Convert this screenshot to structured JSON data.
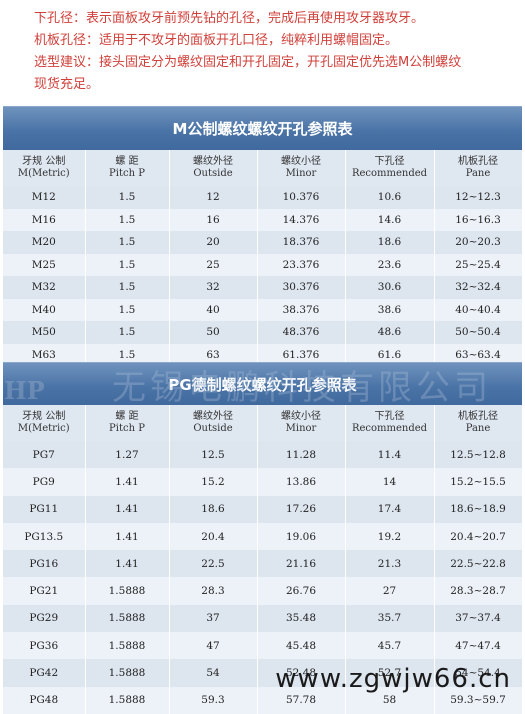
{
  "notes": [
    "下孔径：表示面板攻牙前预先钻的孔径，完成后再使用攻牙器攻牙。",
    "机板孔径：适用于不攻牙的面板开孔口径，纯粹利用螺帽固定。",
    "选型建议：接头固定分为螺纹固定和开孔固定，开孔固定优先选M公制螺纹",
    "现货充足。"
  ],
  "headers": [
    [
      "牙规 公制",
      "M(Metric)"
    ],
    [
      "螺 距",
      "Pitch P"
    ],
    [
      "螺纹外径",
      "Outside"
    ],
    [
      "螺纹小径",
      "Minor"
    ],
    [
      "下孔径",
      "Recommended"
    ],
    [
      "机板孔径",
      "Pane"
    ]
  ],
  "table_metric": {
    "title": "M公制螺纹螺纹开孔参照表",
    "rows": [
      [
        "M12",
        "1.5",
        "12",
        "10.376",
        "10.6",
        "12~12.3"
      ],
      [
        "M16",
        "1.5",
        "16",
        "14.376",
        "14.6",
        "16~16.3"
      ],
      [
        "M20",
        "1.5",
        "20",
        "18.376",
        "18.6",
        "20~20.3"
      ],
      [
        "M25",
        "1.5",
        "25",
        "23.376",
        "23.6",
        "25~25.4"
      ],
      [
        "M32",
        "1.5",
        "32",
        "30.376",
        "30.6",
        "32~32.4"
      ],
      [
        "M40",
        "1.5",
        "40",
        "38.376",
        "38.6",
        "40~40.4"
      ],
      [
        "M50",
        "1.5",
        "50",
        "48.376",
        "48.6",
        "50~50.4"
      ],
      [
        "M63",
        "1.5",
        "63",
        "61.376",
        "61.6",
        "63~63.4"
      ]
    ]
  },
  "table_pg": {
    "title": "PG德制螺纹螺纹开孔参照表",
    "rows": [
      [
        "PG7",
        "1.27",
        "12.5",
        "11.28",
        "11.4",
        "12.5~12.8"
      ],
      [
        "PG9",
        "1.41",
        "15.2",
        "13.86",
        "14",
        "15.2~15.5"
      ],
      [
        "PG11",
        "1.41",
        "18.6",
        "17.26",
        "17.4",
        "18.6~18.9"
      ],
      [
        "PG13.5",
        "1.41",
        "20.4",
        "19.06",
        "19.2",
        "20.4~20.7"
      ],
      [
        "PG16",
        "1.41",
        "22.5",
        "21.16",
        "21.3",
        "22.5~22.8"
      ],
      [
        "PG21",
        "1.5888",
        "28.3",
        "26.76",
        "27",
        "28.3~28.7"
      ],
      [
        "PG29",
        "1.5888",
        "37",
        "35.48",
        "35.7",
        "37~37.4"
      ],
      [
        "PG36",
        "1.5888",
        "47",
        "45.48",
        "45.7",
        "47~47.4"
      ],
      [
        "PG42",
        "1.5888",
        "54",
        "52.48",
        "52.7",
        "54~54.4"
      ],
      [
        "PG48",
        "1.5888",
        "59.3",
        "57.78",
        "58",
        "59.3~59.7"
      ]
    ]
  },
  "watermarks": {
    "logo": "HP",
    "company": "无锡电鹏科技有限公司",
    "site": "www.zgwjw66.cn"
  }
}
